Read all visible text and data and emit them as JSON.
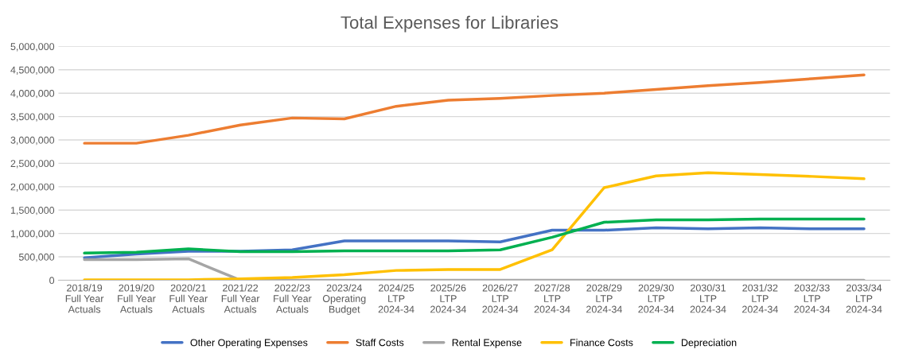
{
  "chart_data": {
    "type": "line",
    "title": "Total Expenses for Libraries",
    "categories": [
      "2018/19\nFull Year\nActuals",
      "2019/20\nFull Year\nActuals",
      "2020/21\nFull Year\nActuals",
      "2021/22\nFull Year\nActuals",
      "2022/23\nFull Year\nActuals",
      "2023/24\nOperating\nBudget",
      "2024/25\nLTP\n2024-34",
      "2025/26\nLTP\n2024-34",
      "2026/27\nLTP\n2024-34",
      "2027/28\nLTP\n2024-34",
      "2028/29\nLTP\n2024-34",
      "2029/30\nLTP\n2024-34",
      "2030/31\nLTP\n2024-34",
      "2031/32\nLTP\n2024-34",
      "2032/33\nLTP\n2024-34",
      "2033/34\nLTP\n2024-34"
    ],
    "series": [
      {
        "name": "Other Operating Expenses",
        "color": "#4472c4",
        "values": [
          480000,
          560000,
          620000,
          620000,
          650000,
          840000,
          840000,
          840000,
          820000,
          1070000,
          1070000,
          1120000,
          1100000,
          1120000,
          1100000,
          1100000
        ]
      },
      {
        "name": "Staff Costs",
        "color": "#ed7d31",
        "values": [
          2930000,
          2930000,
          3100000,
          3320000,
          3470000,
          3450000,
          3720000,
          3850000,
          3890000,
          3950000,
          4000000,
          4080000,
          4160000,
          4230000,
          4310000,
          4390000
        ]
      },
      {
        "name": "Rental Expense",
        "color": "#a5a5a5",
        "values": [
          440000,
          440000,
          460000,
          0,
          0,
          0,
          0,
          0,
          0,
          0,
          0,
          0,
          0,
          0,
          0,
          0
        ]
      },
      {
        "name": "Finance Costs",
        "color": "#ffc000",
        "values": [
          10000,
          10000,
          10000,
          30000,
          60000,
          120000,
          210000,
          230000,
          230000,
          650000,
          1980000,
          2230000,
          2300000,
          2260000,
          2220000,
          2170000
        ]
      },
      {
        "name": "Depreciation",
        "color": "#00b050",
        "values": [
          580000,
          600000,
          670000,
          610000,
          610000,
          630000,
          630000,
          630000,
          650000,
          920000,
          1240000,
          1290000,
          1290000,
          1310000,
          1310000,
          1310000
        ]
      }
    ],
    "ylim": [
      0,
      5000000
    ],
    "yticks": [
      {
        "value": 0,
        "label": "0"
      },
      {
        "value": 500000,
        "label": "500,000"
      },
      {
        "value": 1000000,
        "label": "1,000,000"
      },
      {
        "value": 1500000,
        "label": "1,500,000"
      },
      {
        "value": 2000000,
        "label": "2,000,000"
      },
      {
        "value": 2500000,
        "label": "2,500,000"
      },
      {
        "value": 3000000,
        "label": "3,000,000"
      },
      {
        "value": 3500000,
        "label": "3,500,000"
      },
      {
        "value": 4000000,
        "label": "4,000,000"
      },
      {
        "value": 4500000,
        "label": "4,500,000"
      },
      {
        "value": 5000000,
        "label": "5,000,000"
      }
    ],
    "grid": "y",
    "legend": "bottom",
    "marker": "none",
    "line_style": "solid"
  }
}
